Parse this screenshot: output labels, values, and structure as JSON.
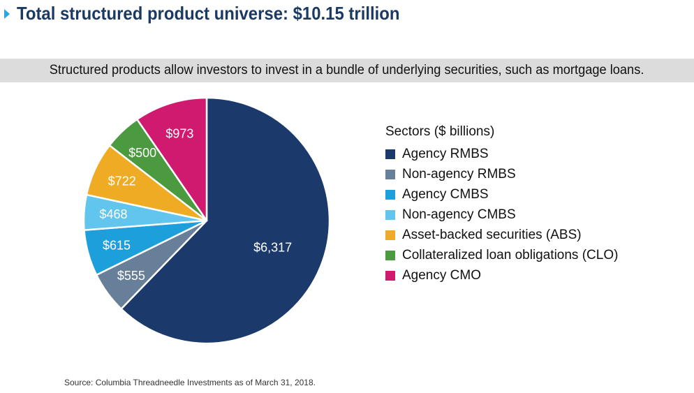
{
  "chart_data": {
    "type": "pie",
    "title": "Total structured product universe: $10.15 trillion",
    "subtitle": "Structured products allow investors to invest in a bundle of underlying securities, such as mortgage loans.",
    "legend_title": "Sectors ($ billions)",
    "legend_position": "right",
    "categories": [
      "Agency RMBS",
      "Non-agency RMBS",
      "Agency CMBS",
      "Non-agency CMBS",
      "Asset-backed securities (ABS)",
      "Collateralized loan obligations (CLO)",
      "Agency CMO"
    ],
    "values": [
      6317,
      555,
      615,
      468,
      722,
      500,
      973
    ],
    "labels": [
      "$6,317",
      "$555",
      "$615",
      "$468",
      "$722",
      "$500",
      "$973"
    ],
    "colors": [
      "#1b3a6b",
      "#687f99",
      "#1d9fdb",
      "#62c5ee",
      "#f0ab24",
      "#4b9a3f",
      "#d01a6f"
    ],
    "source": "Source: Columbia Threadneedle Investments as of March 31, 2018."
  }
}
